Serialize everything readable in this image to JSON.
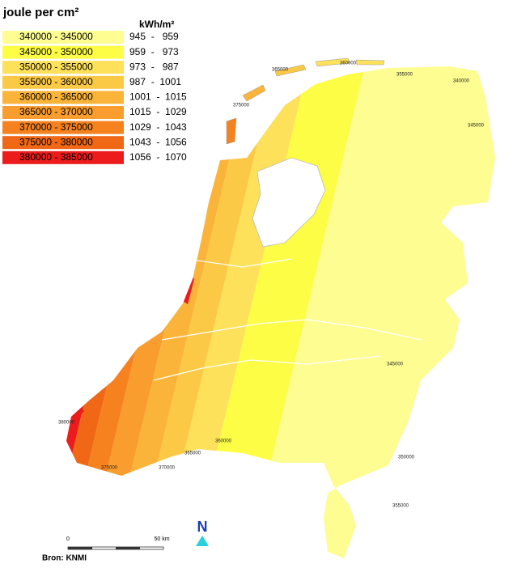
{
  "legend": {
    "title": "joule per cm²",
    "unit_title": "kWh/m²",
    "items": [
      {
        "range": "340000 - 345000",
        "kwh": "945  -   959",
        "color": "#fdfd92"
      },
      {
        "range": "345000 - 350000",
        "kwh": "959  -   973",
        "color": "#fdfd45"
      },
      {
        "range": "350000 - 355000",
        "kwh": "973  -   987",
        "color": "#fde15a"
      },
      {
        "range": "355000 - 360000",
        "kwh": "987  -  1001",
        "color": "#fcc946"
      },
      {
        "range": "360000 - 365000",
        "kwh": "1001  -  1015",
        "color": "#fbb43a"
      },
      {
        "range": "365000 - 370000",
        "kwh": "1015  -  1029",
        "color": "#f99d2e"
      },
      {
        "range": "370000 - 375000",
        "kwh": "1029  -  1043",
        "color": "#f5821f"
      },
      {
        "range": "375000 - 380000",
        "kwh": "1043  -  1056",
        "color": "#f06716"
      },
      {
        "range": "380000 - 385000",
        "kwh": "1056  -  1070",
        "color": "#ec1c1c"
      }
    ]
  },
  "map_labels": [
    "340000",
    "345000",
    "345000",
    "350000",
    "355000",
    "360000",
    "365000",
    "370000",
    "375000",
    "380000",
    "355000",
    "360000",
    "365000",
    "375000"
  ],
  "scale": {
    "start": "0",
    "end": "50 km"
  },
  "north": "N",
  "source": "Bron: KNMI"
}
